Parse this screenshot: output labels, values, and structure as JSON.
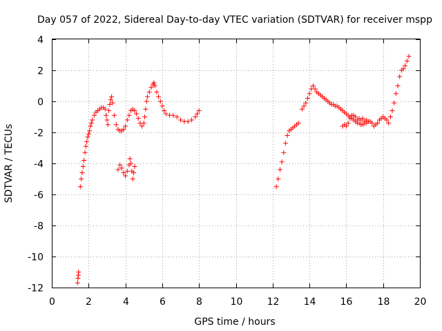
{
  "chart_data": {
    "type": "scatter",
    "title": "Day 057 of 2022, Sidereal Day-to-day VTEC variation (SDTVAR) for receiver mspp",
    "xlabel": "GPS time / hours",
    "ylabel": "SDTVAR / TECUs",
    "xlim": [
      0,
      20
    ],
    "ylim": [
      -12,
      4
    ],
    "xticks": [
      0,
      2,
      4,
      6,
      8,
      10,
      12,
      14,
      16,
      18,
      20
    ],
    "yticks": [
      -12,
      -10,
      -8,
      -6,
      -4,
      -2,
      0,
      2,
      4
    ],
    "grid": true,
    "marker": "+",
    "color": "#ff0000",
    "series": [
      {
        "name": "SDTVAR",
        "points": [
          [
            1.4,
            -11.7
          ],
          [
            1.42,
            -11.4
          ],
          [
            1.44,
            -11.2
          ],
          [
            1.46,
            -11.0
          ],
          [
            1.55,
            -5.5
          ],
          [
            1.6,
            -5.0
          ],
          [
            1.65,
            -4.6
          ],
          [
            1.7,
            -4.2
          ],
          [
            1.75,
            -3.8
          ],
          [
            1.8,
            -3.3
          ],
          [
            1.85,
            -2.9
          ],
          [
            1.9,
            -2.6
          ],
          [
            1.95,
            -2.3
          ],
          [
            2.0,
            -2.1
          ],
          [
            2.05,
            -1.9
          ],
          [
            2.1,
            -1.6
          ],
          [
            2.15,
            -1.4
          ],
          [
            2.2,
            -1.2
          ],
          [
            2.3,
            -0.9
          ],
          [
            2.4,
            -0.7
          ],
          [
            2.5,
            -0.6
          ],
          [
            2.6,
            -0.5
          ],
          [
            2.7,
            -0.4
          ],
          [
            2.8,
            -0.4
          ],
          [
            2.9,
            -0.5
          ],
          [
            2.95,
            -0.9
          ],
          [
            3.0,
            -1.2
          ],
          [
            3.05,
            -1.5
          ],
          [
            3.1,
            -0.6
          ],
          [
            3.15,
            -0.2
          ],
          [
            3.2,
            0.1
          ],
          [
            3.25,
            0.3
          ],
          [
            3.3,
            -0.1
          ],
          [
            3.4,
            -0.9
          ],
          [
            3.5,
            -1.5
          ],
          [
            3.6,
            -1.8
          ],
          [
            3.7,
            -1.9
          ],
          [
            3.8,
            -1.9
          ],
          [
            3.9,
            -1.8
          ],
          [
            4.0,
            -1.6
          ],
          [
            4.1,
            -1.2
          ],
          [
            4.2,
            -0.9
          ],
          [
            4.3,
            -0.6
          ],
          [
            4.4,
            -0.5
          ],
          [
            4.5,
            -0.6
          ],
          [
            4.6,
            -0.8
          ],
          [
            4.7,
            -1.1
          ],
          [
            4.8,
            -1.4
          ],
          [
            4.9,
            -1.6
          ],
          [
            5.0,
            -1.4
          ],
          [
            5.05,
            -1.0
          ],
          [
            5.1,
            -0.5
          ],
          [
            5.15,
            0.0
          ],
          [
            5.2,
            0.3
          ],
          [
            5.3,
            0.6
          ],
          [
            5.4,
            0.9
          ],
          [
            5.5,
            1.1
          ],
          [
            5.55,
            1.2
          ],
          [
            5.6,
            1.0
          ],
          [
            5.7,
            0.6
          ],
          [
            5.8,
            0.3
          ],
          [
            5.9,
            0.0
          ],
          [
            6.0,
            -0.3
          ],
          [
            6.1,
            -0.6
          ],
          [
            6.2,
            -0.8
          ],
          [
            6.4,
            -0.9
          ],
          [
            6.6,
            -0.9
          ],
          [
            6.8,
            -1.0
          ],
          [
            7.0,
            -1.2
          ],
          [
            7.2,
            -1.3
          ],
          [
            7.4,
            -1.3
          ],
          [
            7.6,
            -1.2
          ],
          [
            7.8,
            -1.0
          ],
          [
            7.9,
            -0.8
          ],
          [
            8.0,
            -0.6
          ],
          [
            3.6,
            -4.4
          ],
          [
            3.7,
            -4.1
          ],
          [
            3.8,
            -4.3
          ],
          [
            3.9,
            -4.6
          ],
          [
            4.0,
            -4.8
          ],
          [
            4.1,
            -4.5
          ],
          [
            4.2,
            -4.1
          ],
          [
            4.25,
            -3.7
          ],
          [
            4.3,
            -4.0
          ],
          [
            4.35,
            -4.5
          ],
          [
            4.4,
            -5.0
          ],
          [
            4.45,
            -4.6
          ],
          [
            4.5,
            -4.2
          ],
          [
            12.2,
            -5.5
          ],
          [
            12.3,
            -5.0
          ],
          [
            12.4,
            -4.4
          ],
          [
            12.5,
            -3.9
          ],
          [
            12.6,
            -3.3
          ],
          [
            12.7,
            -2.7
          ],
          [
            12.8,
            -2.2
          ],
          [
            12.9,
            -1.9
          ],
          [
            13.0,
            -1.8
          ],
          [
            13.1,
            -1.7
          ],
          [
            13.2,
            -1.6
          ],
          [
            13.3,
            -1.5
          ],
          [
            13.4,
            -1.4
          ],
          [
            13.6,
            -0.5
          ],
          [
            13.7,
            -0.3
          ],
          [
            13.8,
            -0.1
          ],
          [
            13.9,
            0.2
          ],
          [
            14.0,
            0.5
          ],
          [
            14.1,
            0.8
          ],
          [
            14.2,
            1.0
          ],
          [
            14.3,
            0.8
          ],
          [
            14.4,
            0.6
          ],
          [
            14.5,
            0.5
          ],
          [
            14.6,
            0.4
          ],
          [
            14.7,
            0.3
          ],
          [
            14.8,
            0.2
          ],
          [
            14.9,
            0.1
          ],
          [
            15.0,
            0.0
          ],
          [
            15.1,
            -0.1
          ],
          [
            15.2,
            -0.2
          ],
          [
            15.3,
            -0.2
          ],
          [
            15.4,
            -0.3
          ],
          [
            15.5,
            -0.3
          ],
          [
            15.6,
            -0.4
          ],
          [
            15.7,
            -0.5
          ],
          [
            15.8,
            -0.6
          ],
          [
            15.9,
            -0.7
          ],
          [
            16.0,
            -0.8
          ],
          [
            16.1,
            -0.9
          ],
          [
            16.2,
            -1.0
          ],
          [
            16.3,
            -1.1
          ],
          [
            16.4,
            -1.2
          ],
          [
            16.5,
            -1.3
          ],
          [
            16.6,
            -1.4
          ],
          [
            16.7,
            -1.4
          ],
          [
            16.8,
            -1.5
          ],
          [
            16.9,
            -1.5
          ],
          [
            17.0,
            -1.4
          ],
          [
            17.1,
            -1.4
          ],
          [
            17.2,
            -1.3
          ],
          [
            17.3,
            -1.3
          ],
          [
            17.4,
            -1.4
          ],
          [
            17.5,
            -1.6
          ],
          [
            15.8,
            -1.6
          ],
          [
            15.9,
            -1.5
          ],
          [
            16.0,
            -1.6
          ],
          [
            16.1,
            -1.4
          ],
          [
            16.2,
            -1.1
          ],
          [
            16.3,
            -0.9
          ],
          [
            16.4,
            -0.9
          ],
          [
            16.5,
            -1.0
          ],
          [
            16.6,
            -1.2
          ],
          [
            16.7,
            -1.1
          ],
          [
            16.8,
            -1.2
          ],
          [
            16.9,
            -1.1
          ],
          [
            17.0,
            -1.3
          ],
          [
            17.1,
            -1.2
          ],
          [
            17.6,
            -1.5
          ],
          [
            17.7,
            -1.4
          ],
          [
            17.8,
            -1.2
          ],
          [
            17.9,
            -1.1
          ],
          [
            18.0,
            -1.0
          ],
          [
            18.1,
            -1.1
          ],
          [
            18.2,
            -1.2
          ],
          [
            18.3,
            -1.4
          ],
          [
            18.4,
            -1.0
          ],
          [
            18.5,
            -0.6
          ],
          [
            18.6,
            -0.1
          ],
          [
            18.7,
            0.5
          ],
          [
            18.8,
            1.0
          ],
          [
            18.9,
            1.6
          ],
          [
            19.0,
            2.0
          ],
          [
            19.1,
            2.1
          ],
          [
            19.2,
            2.3
          ],
          [
            19.3,
            2.6
          ],
          [
            19.4,
            2.9
          ]
        ]
      }
    ]
  }
}
